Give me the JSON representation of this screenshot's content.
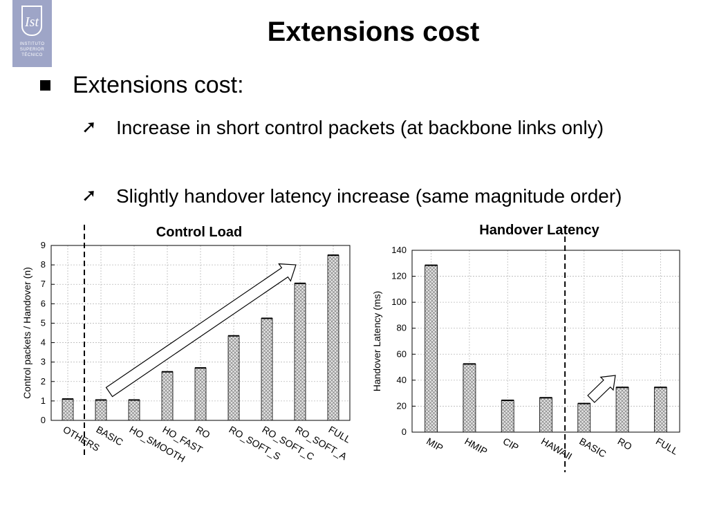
{
  "slide": {
    "title": "Extensions cost",
    "bullet": "Extensions cost:",
    "subbullets": [
      "Increase in short control packets (at backbone links only)",
      "Slightly handover latency increase (same magnitude order)"
    ],
    "logo_initials": "Ist",
    "logo_text": [
      "INSTITUTO",
      "SUPERIOR",
      "TÉCNICO"
    ],
    "arrow_glyph": "➚",
    "colors": {
      "logo_bg": "#9ea5c7",
      "bar_fill": "hatched-gray"
    }
  },
  "chart_data": [
    {
      "type": "bar",
      "title": "Control Load",
      "xlabel": "",
      "ylabel": "Control packets / Handover (n)",
      "ylim": [
        0,
        9
      ],
      "yticks": [
        0,
        1,
        2,
        3,
        4,
        5,
        6,
        7,
        8,
        9
      ],
      "categories": [
        "OTHERS",
        "BASIC",
        "HO_SMOOTH",
        "HO_FAST",
        "RO",
        "RO_SOFT_S",
        "RO_SOFT_C",
        "RO_SOFT_A",
        "FULL"
      ],
      "values": [
        1.1,
        1.05,
        1.05,
        2.5,
        2.7,
        4.35,
        5.25,
        7.05,
        8.5
      ],
      "grid": true,
      "legend": "none",
      "separator_after_category": 0
    },
    {
      "type": "bar",
      "title": "Handover Latency",
      "xlabel": "",
      "ylabel": "Handover Latency (ms)",
      "ylim": [
        0,
        140
      ],
      "yticks": [
        0,
        20,
        40,
        60,
        80,
        100,
        120,
        140
      ],
      "categories": [
        "MIP",
        "HMIP",
        "CIP",
        "HAWAII",
        "BASIC",
        "RO",
        "FULL"
      ],
      "values": [
        128.5,
        52.5,
        24.5,
        26.5,
        22,
        34.5,
        34.5
      ],
      "grid": true,
      "legend": "none",
      "separator_after_category": 3
    }
  ]
}
